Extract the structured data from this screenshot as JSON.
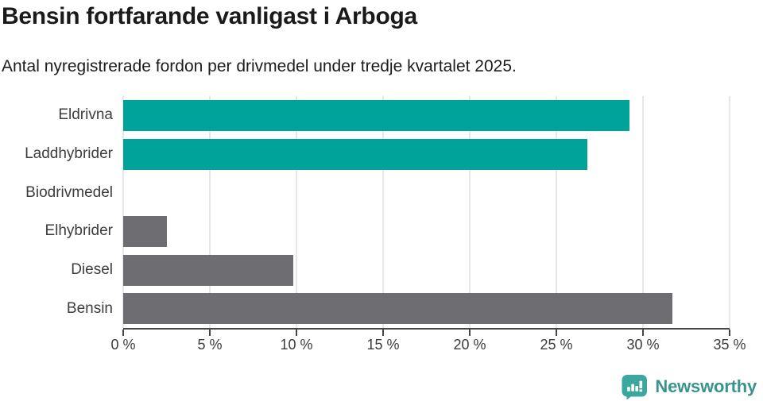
{
  "header": {
    "title": "Bensin fortfarande vanligast i Arboga",
    "subtitle": "Antal nyregistrerade fordon per drivmedel under tredje kvartalet 2025."
  },
  "chart_data": {
    "type": "bar",
    "orientation": "horizontal",
    "title": "Bensin fortfarande vanligast i Arboga",
    "subtitle": "Antal nyregistrerade fordon per drivmedel under tredje kvartalet 2025.",
    "categories": [
      "Eldrivna",
      "Laddhybrider",
      "Biodrivmedel",
      "Elhybrider",
      "Diesel",
      "Bensin"
    ],
    "values": [
      29.2,
      26.8,
      0,
      2.5,
      9.8,
      31.7
    ],
    "bar_colors": [
      "#00a39a",
      "#00a39a",
      "#6e6e72",
      "#6e6e72",
      "#6e6e72",
      "#6e6e72"
    ],
    "xlabel": "",
    "ylabel": "",
    "xlim": [
      0,
      35
    ],
    "x_tick_values": [
      0,
      5,
      10,
      15,
      20,
      25,
      30,
      35
    ],
    "x_tick_labels": [
      "0 %",
      "5 %",
      "10 %",
      "15 %",
      "20 %",
      "25 %",
      "30 %",
      "35 %"
    ],
    "grid": true,
    "legend": false
  },
  "colors": {
    "accent_teal": "#00a39a",
    "neutral_gray": "#6e6e72",
    "gridline": "#e7e7e7",
    "axis": "#47474b",
    "title_text": "#1a1a1a",
    "label_text": "#3d3d3d"
  },
  "footer": {
    "brand": "Newsworthy",
    "brand_text_color": "#3a948e",
    "brand_icon_color": "#3ba79e",
    "logo_icon": "bar-chart-speech-bubble-icon"
  }
}
